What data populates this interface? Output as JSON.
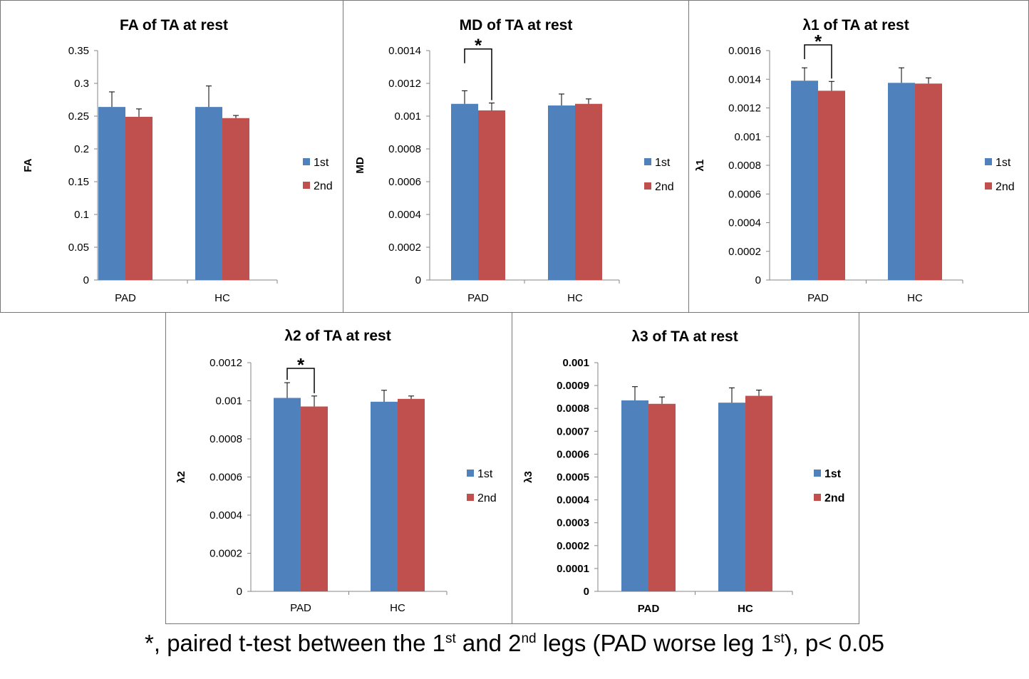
{
  "chart_data": [
    {
      "type": "bar",
      "title": "FA of TA at rest",
      "xlabel": "",
      "ylabel": "FA",
      "categories": [
        "PAD",
        "HC"
      ],
      "series": [
        {
          "name": "1st",
          "values": [
            0.264,
            0.264
          ],
          "errors": [
            0.023,
            0.032
          ]
        },
        {
          "name": "2nd",
          "values": [
            0.249,
            0.247
          ],
          "errors": [
            0.012,
            0.004
          ]
        }
      ],
      "ylim": [
        0,
        0.35
      ],
      "yticks": [
        "0",
        "0.05",
        "0.1",
        "0.15",
        "0.2",
        "0.25",
        "0.3",
        "0.35"
      ],
      "colors": [
        "#4F81BD",
        "#C0504D"
      ],
      "significance": null,
      "bold_ticks": false
    },
    {
      "type": "bar",
      "title": "MD of TA at rest",
      "xlabel": "",
      "ylabel": "MD",
      "categories": [
        "PAD",
        "HC"
      ],
      "series": [
        {
          "name": "1st",
          "values": [
            0.001075,
            0.001065
          ],
          "errors": [
            8e-05,
            7e-05
          ]
        },
        {
          "name": "2nd",
          "values": [
            0.001035,
            0.001075
          ],
          "errors": [
            4.5e-05,
            3e-05
          ]
        }
      ],
      "ylim": [
        0,
        0.0014
      ],
      "yticks": [
        "0",
        "0.0002",
        "0.0004",
        "0.0006",
        "0.0008",
        "0.001",
        "0.0012",
        "0.0014"
      ],
      "colors": [
        "#4F81BD",
        "#C0504D"
      ],
      "significance": {
        "category": "PAD",
        "label": "*",
        "level": 0.00141
      },
      "bold_ticks": false
    },
    {
      "type": "bar",
      "title": "λ1 of TA at rest",
      "xlabel": "",
      "ylabel": "λ1",
      "categories": [
        "PAD",
        "HC"
      ],
      "series": [
        {
          "name": "1st",
          "values": [
            0.00139,
            0.001375
          ],
          "errors": [
            9e-05,
            0.000105
          ]
        },
        {
          "name": "2nd",
          "values": [
            0.00132,
            0.00137
          ],
          "errors": [
            6.5e-05,
            4e-05
          ]
        }
      ],
      "ylim": [
        0,
        0.0016
      ],
      "yticks": [
        "0",
        "0.0002",
        "0.0004",
        "0.0006",
        "0.0008",
        "0.001",
        "0.0012",
        "0.0014",
        "0.0016"
      ],
      "colors": [
        "#4F81BD",
        "#C0504D"
      ],
      "significance": {
        "category": "PAD",
        "label": "*",
        "level": 0.00164
      },
      "bold_ticks": false
    },
    {
      "type": "bar",
      "title": "λ2 of TA at rest",
      "xlabel": "",
      "ylabel": "λ2",
      "categories": [
        "PAD",
        "HC"
      ],
      "series": [
        {
          "name": "1st",
          "values": [
            0.001015,
            0.000995
          ],
          "errors": [
            8e-05,
            6e-05
          ]
        },
        {
          "name": "2nd",
          "values": [
            0.00097,
            0.00101
          ],
          "errors": [
            5.5e-05,
            1.5e-05
          ]
        }
      ],
      "ylim": [
        0,
        0.0012
      ],
      "yticks": [
        "0",
        "0.0002",
        "0.0004",
        "0.0006",
        "0.0008",
        "0.001",
        "0.0012"
      ],
      "colors": [
        "#4F81BD",
        "#C0504D"
      ],
      "significance": {
        "category": "PAD",
        "label": "*",
        "level": 0.00117
      },
      "bold_ticks": false
    },
    {
      "type": "bar",
      "title": "λ3 of TA at rest",
      "xlabel": "",
      "ylabel": "λ3",
      "categories": [
        "PAD",
        "HC"
      ],
      "series": [
        {
          "name": "1st",
          "values": [
            0.000835,
            0.000825
          ],
          "errors": [
            6e-05,
            6.5e-05
          ]
        },
        {
          "name": "2nd",
          "values": [
            0.00082,
            0.000855
          ],
          "errors": [
            3e-05,
            2.5e-05
          ]
        }
      ],
      "ylim": [
        0,
        0.001
      ],
      "yticks": [
        "0",
        "0.0001",
        "0.0002",
        "0.0003",
        "0.0004",
        "0.0005",
        "0.0006",
        "0.0007",
        "0.0008",
        "0.0009",
        "0.001"
      ],
      "colors": [
        "#4F81BD",
        "#C0504D"
      ],
      "significance": null,
      "bold_ticks": true
    }
  ],
  "caption": {
    "lead": "*, paired t-test between the 1",
    "sup1": "st",
    "mid1": " and 2",
    "sup2": "nd",
    "mid2": " legs (PAD worse leg 1",
    "sup3": "st",
    "tail": "), p< 0.05"
  }
}
